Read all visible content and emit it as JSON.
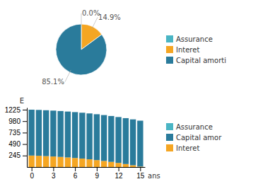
{
  "chart_data": [
    {
      "type": "pie",
      "categories": [
        "Assurance",
        "Interet",
        "Capital amorti"
      ],
      "values": [
        0.001,
        14.9,
        85.1
      ],
      "value_labels": [
        "0.0%",
        "14.9%",
        "85.1%"
      ],
      "colors": [
        "#4ab5c4",
        "#f5a623",
        "#2a7b9b"
      ],
      "data_labels": true,
      "legend": "right"
    },
    {
      "type": "bar",
      "stacked": true,
      "x": [
        0,
        1,
        2,
        3,
        4,
        5,
        6,
        7,
        8,
        9,
        10,
        11,
        12,
        13,
        14,
        15
      ],
      "series": [
        {
          "name": "Interet",
          "color": "#f5a623",
          "values": [
            245,
            240,
            233,
            225,
            216,
            205,
            193,
            180,
            165,
            148,
            130,
            110,
            88,
            64,
            38,
            10
          ]
        },
        {
          "name": "Capital amor",
          "color": "#2a7b9b",
          "values": [
            980,
            980,
            980,
            980,
            980,
            980,
            980,
            980,
            980,
            980,
            980,
            980,
            980,
            980,
            980,
            980
          ]
        },
        {
          "name": "Assurance",
          "color": "#4ab5c4",
          "values": [
            0,
            0,
            0,
            0,
            0,
            0,
            0,
            0,
            0,
            0,
            0,
            0,
            0,
            0,
            0,
            0
          ]
        }
      ],
      "xlim": [
        -0.65,
        15.65
      ],
      "xticks": [
        0,
        3,
        6,
        9,
        12,
        15
      ],
      "ylim": [
        0,
        1270
      ],
      "yticks": [
        245,
        490,
        735,
        980,
        1225
      ],
      "xlabel": "ans",
      "ylabel": "E",
      "grid": false,
      "legend": "right"
    }
  ]
}
